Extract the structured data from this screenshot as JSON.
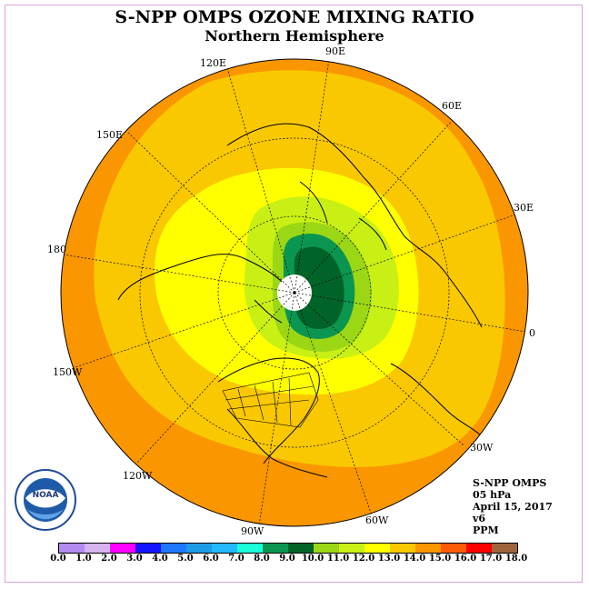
{
  "title": "S-NPP OMPS OZONE MIXING RATIO",
  "subtitle": "Northern Hemisphere",
  "longitude_labels": [
    "90E",
    "60E",
    "30E",
    "0",
    "30W",
    "60W",
    "90W",
    "120W",
    "150W",
    "180",
    "150E",
    "120E"
  ],
  "info": {
    "instrument": "S-NPP OMPS",
    "level": "05 hPa",
    "date": "April 15, 2017",
    "version": "v6",
    "units": "PPM"
  },
  "logo_text": "NOAA",
  "colorbar": {
    "ticks": [
      "0.0",
      "1.0",
      "2.0",
      "3.0",
      "4.0",
      "5.0",
      "6.0",
      "7.0",
      "8.0",
      "9.0",
      "10.0",
      "11.0",
      "12.0",
      "13.0",
      "14.0",
      "15.0",
      "16.0",
      "17.0",
      "18.0"
    ],
    "colors": [
      "#b48cf0",
      "#d7b4f0",
      "#ff00ff",
      "#1414ff",
      "#1e78ff",
      "#1e9be6",
      "#23b9ff",
      "#19ffd7",
      "#0a9650",
      "#006428",
      "#9bd714",
      "#c8f014",
      "#ffff00",
      "#fac800",
      "#fa9600",
      "#ff5a0a",
      "#ff0000",
      "#a0643c"
    ]
  },
  "map_colors": {
    "outer_orange": "#fa9600",
    "gold": "#fac800",
    "yellow": "#ffff00",
    "light_green": "#c8f014",
    "green": "#9bd714",
    "mid_green": "#0a9650",
    "dark_green": "#006428"
  }
}
